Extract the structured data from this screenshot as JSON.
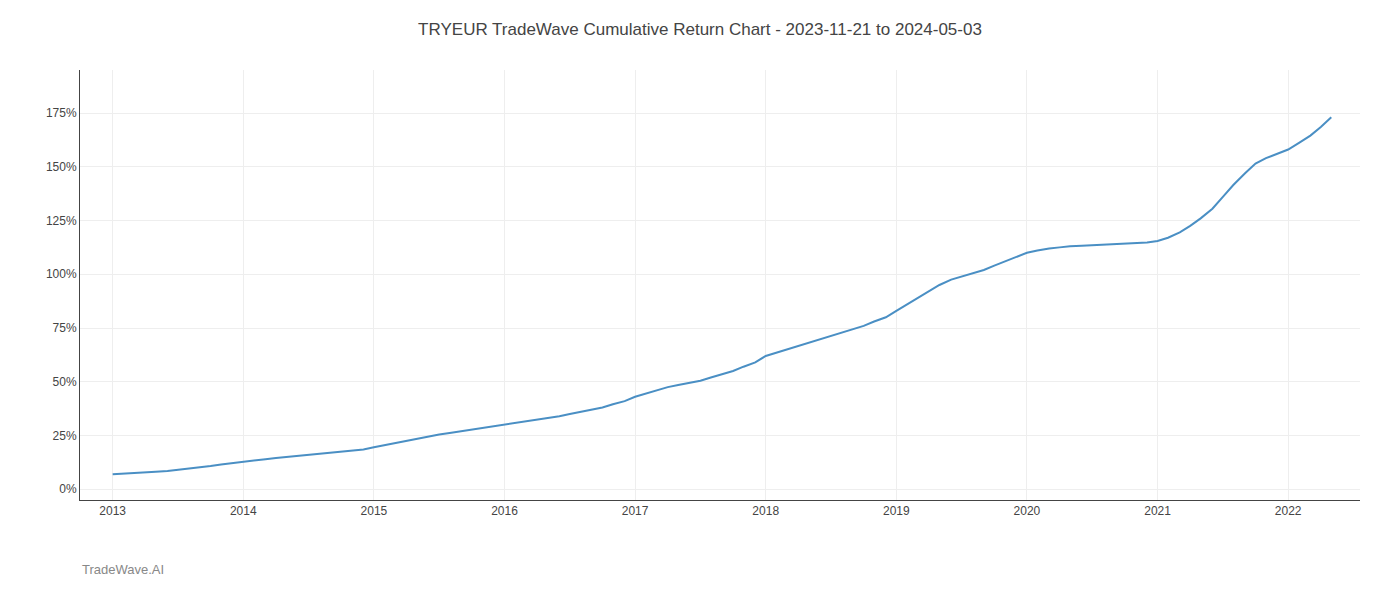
{
  "chart_data": {
    "type": "line",
    "title": "TRYEUR TradeWave Cumulative Return Chart - 2023-11-21 to 2024-05-03",
    "annotations": [
      "TradeWave.AI"
    ],
    "x": [
      2013.0,
      2013.08,
      2013.17,
      2013.25,
      2013.33,
      2013.42,
      2013.5,
      2013.58,
      2013.67,
      2013.75,
      2013.83,
      2013.92,
      2014.0,
      2014.08,
      2014.17,
      2014.25,
      2014.33,
      2014.42,
      2014.5,
      2014.58,
      2014.67,
      2014.75,
      2014.83,
      2014.92,
      2015.0,
      2015.08,
      2015.17,
      2015.25,
      2015.33,
      2015.42,
      2015.5,
      2015.58,
      2015.67,
      2015.75,
      2015.83,
      2015.92,
      2016.0,
      2016.08,
      2016.17,
      2016.25,
      2016.33,
      2016.42,
      2016.5,
      2016.58,
      2016.67,
      2016.75,
      2016.83,
      2016.92,
      2017.0,
      2017.08,
      2017.17,
      2017.25,
      2017.33,
      2017.42,
      2017.5,
      2017.58,
      2017.67,
      2017.75,
      2017.83,
      2017.92,
      2018.0,
      2018.08,
      2018.17,
      2018.25,
      2018.33,
      2018.42,
      2018.5,
      2018.58,
      2018.67,
      2018.75,
      2018.83,
      2018.92,
      2019.0,
      2019.08,
      2019.17,
      2019.25,
      2019.33,
      2019.42,
      2019.5,
      2019.58,
      2019.67,
      2019.75,
      2019.83,
      2019.92,
      2020.0,
      2020.08,
      2020.17,
      2020.25,
      2020.33,
      2020.42,
      2020.5,
      2020.58,
      2020.67,
      2020.75,
      2020.83,
      2020.92,
      2021.0,
      2021.08,
      2021.17,
      2021.25,
      2021.33,
      2021.42,
      2021.5,
      2021.58,
      2021.67,
      2021.75,
      2021.83,
      2021.92,
      2022.0,
      2022.08,
      2022.17,
      2022.25,
      2022.33
    ],
    "values": [
      7.0,
      7.2,
      7.5,
      7.8,
      8.1,
      8.5,
      9.0,
      9.5,
      10.2,
      10.8,
      11.5,
      12.2,
      13.0,
      13.5,
      14.0,
      14.5,
      15.0,
      15.5,
      16.0,
      16.5,
      17.0,
      17.5,
      18.0,
      18.5,
      19.5,
      20.5,
      21.5,
      22.5,
      23.5,
      24.5,
      25.5,
      26.2,
      27.0,
      27.8,
      28.5,
      29.3,
      30.0,
      30.8,
      31.5,
      32.3,
      33.0,
      34.0,
      35.0,
      36.0,
      37.0,
      38.0,
      39.5,
      41.0,
      43.0,
      44.5,
      46.0,
      47.5,
      48.5,
      49.5,
      50.5,
      52.0,
      53.5,
      55.0,
      57.0,
      59.0,
      62.0,
      63.5,
      65.0,
      66.5,
      68.0,
      69.5,
      71.0,
      72.5,
      74.5,
      76.0,
      78.0,
      80.0,
      83.0,
      86.0,
      89.0,
      92.0,
      95.0,
      97.5,
      99.0,
      100.5,
      102.0,
      104.0,
      106.0,
      108.0,
      110.0,
      111.0,
      112.0,
      112.5,
      113.0,
      113.2,
      113.5,
      113.8,
      114.0,
      114.2,
      114.5,
      114.8,
      115.5,
      117.0,
      119.5,
      122.5,
      126.0,
      130.5,
      136.0,
      141.5,
      147.0,
      151.5,
      154.0,
      156.0,
      158.0,
      161.0,
      164.5,
      168.5,
      173.0
    ],
    "color": "#4a8fc4",
    "xlim": [
      2012.75,
      2022.55
    ],
    "xticks": [
      2013,
      2014,
      2015,
      2016,
      2017,
      2018,
      2019,
      2020,
      2021,
      2022
    ],
    "ylim": [
      -5,
      195
    ],
    "yticks": [
      {
        "value": 0,
        "label": "0%"
      },
      {
        "value": 25,
        "label": "25%"
      },
      {
        "value": 50,
        "label": "50%"
      },
      {
        "value": 75,
        "label": "75%"
      },
      {
        "value": 100,
        "label": "100%"
      },
      {
        "value": 125,
        "label": "125%"
      },
      {
        "value": 150,
        "label": "150%"
      },
      {
        "value": 175,
        "label": "175%"
      }
    ],
    "grid": true
  }
}
